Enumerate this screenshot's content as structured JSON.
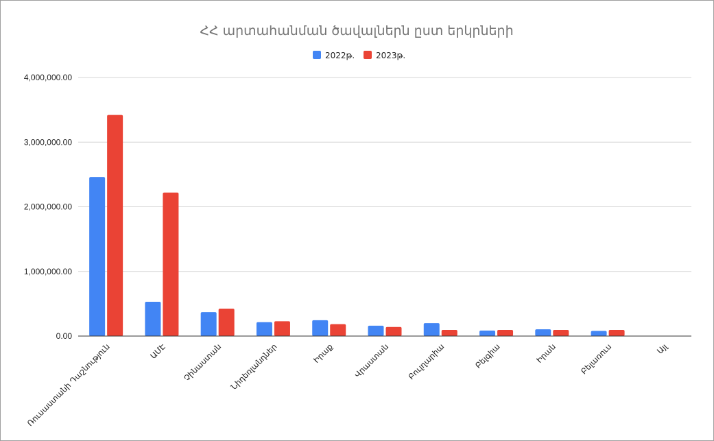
{
  "chart_data": {
    "type": "bar",
    "title": "ՀՀ արտահանման ծավալներն ըստ երկրների",
    "xlabel": "",
    "ylabel": "",
    "ylim": [
      0,
      4000000
    ],
    "y_ticks": [
      "0.00",
      "1,000,000.00",
      "2,000,000.00",
      "3,000,000.00",
      "4,000,000.00"
    ],
    "grid": true,
    "legend_position": "top",
    "categories": [
      "Ռուսաստանի Դաշնություն",
      "ԱՄԷ",
      "Չինաստան",
      "Նիդեռլանդներ",
      "Իրաք",
      "Վրաստան",
      "Բուլղարիա",
      "Բելգիա",
      "Իրան",
      "Բելառուս",
      "Այլ"
    ],
    "series": [
      {
        "name": "2022թ.",
        "color": "#4285f4",
        "values": [
          2460000,
          530000,
          370000,
          215000,
          245000,
          160000,
          200000,
          85000,
          105000,
          80000,
          0
        ]
      },
      {
        "name": "2023թ.",
        "color": "#ea4335",
        "values": [
          3420000,
          2220000,
          425000,
          230000,
          185000,
          140000,
          95000,
          95000,
          95000,
          95000,
          0
        ]
      }
    ]
  }
}
